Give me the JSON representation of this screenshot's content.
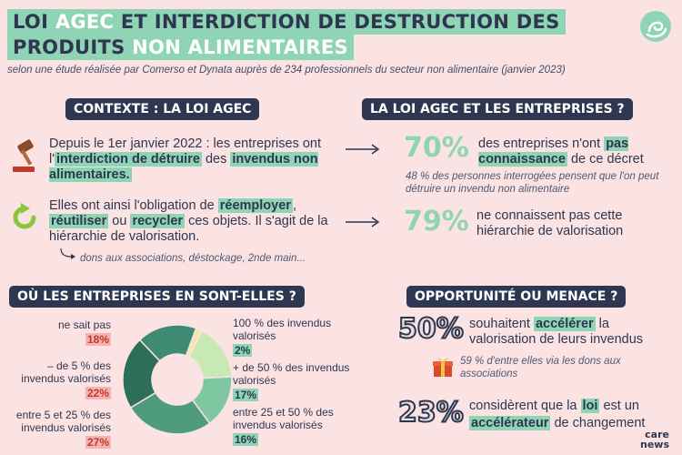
{
  "title": {
    "line1_a": "LOI ",
    "line1_b": "AGEC",
    "line1_c": " ET INTERDICTION DE DESTRUCTION DES",
    "line2_a": "PRODUITS ",
    "line2_b": "NON ALIMENTAIRES"
  },
  "subtitle": "selon une étude réalisée par Comerso et Dynata auprès de 234 professionnels du secteur non alimentaire (janvier 2023)",
  "contexte": {
    "heading": "CONTEXTE : LA LOI AGEC",
    "p1_a": "Depuis le 1er janvier 2022 : les entreprises ont l'",
    "p1_b": "interdiction de détruire",
    "p1_c": " des ",
    "p1_d": "invendus non alimentaires.",
    "p2_a": "Elles ont ainsi l'obligation de ",
    "p2_b": "réemployer",
    "p2_c": ", ",
    "p2_d": "réutiliser",
    "p2_e": " ou ",
    "p2_f": "recycler",
    "p2_g": " ces objets. Il s'agit de la hiérarchie de valorisation.",
    "p2_note": "dons aux associations, déstockage, 2nde main..."
  },
  "entreprises": {
    "heading": "LA LOI AGEC ET LES ENTREPRISES ?",
    "stat1_pct": "70%",
    "stat1_a": "des entreprises n'ont ",
    "stat1_b": "pas connaissance",
    "stat1_c": " de ce décret",
    "stat1_note": "48 % des personnes interrogées pensent que l'on peut détruire un invendu non alimentaire",
    "stat2_pct": "79%",
    "stat2_text": "ne connaissent pas cette hiérarchie de valorisation"
  },
  "ou_en_sont": {
    "heading": "OÙ LES ENTREPRISES EN SONT-ELLES ?",
    "labels": {
      "ne_sait_pas": "ne sait pas",
      "moins5": "– de 5 % des invendus valorisés",
      "entre5_25": "entre 5 et 25 % des invendus valorisés",
      "cent": "100 % des invendus valorisés",
      "plus50": "+ de 50 % des invendus valorisés",
      "entre25_50": "entre 25 et 50 % des invendus valorisés"
    },
    "pcts": {
      "ne_sait_pas": "18%",
      "moins5": "22%",
      "entre5_25": "27%",
      "cent": "2%",
      "plus50": "17%",
      "entre25_50": "16%"
    }
  },
  "chart_data": {
    "type": "pie",
    "categories": [
      "100 % des invendus valorisés",
      "+ de 50 % des invendus valorisés",
      "entre 25 et 50 % des invendus valorisés",
      "entre 5 et 25 % des invendus valorisés",
      "– de 5 % des invendus valorisés",
      "ne sait pas"
    ],
    "values": [
      2,
      17,
      16,
      27,
      22,
      18
    ],
    "colors": [
      "#f6e6a8",
      "#c9e9b4",
      "#7fc7a1",
      "#4f9b7d",
      "#2d6f59",
      "#3e8a73"
    ]
  },
  "opportunite": {
    "heading": "OPPORTUNITÉ OU MENACE ?",
    "stat1_pct": "50%",
    "stat1_a": "souhaitent ",
    "stat1_b": "accélérer",
    "stat1_c": " la valorisation de leurs invendus",
    "stat1_note": "59 % d'entre elles via les dons aux associations",
    "stat2_pct": "23%",
    "stat2_a": "considèrent que la ",
    "stat2_b": "loi",
    "stat2_c": " est un ",
    "stat2_d": "accélérateur",
    "stat2_e": " de changement"
  },
  "brand": {
    "line1": "care",
    "line2": "news"
  }
}
